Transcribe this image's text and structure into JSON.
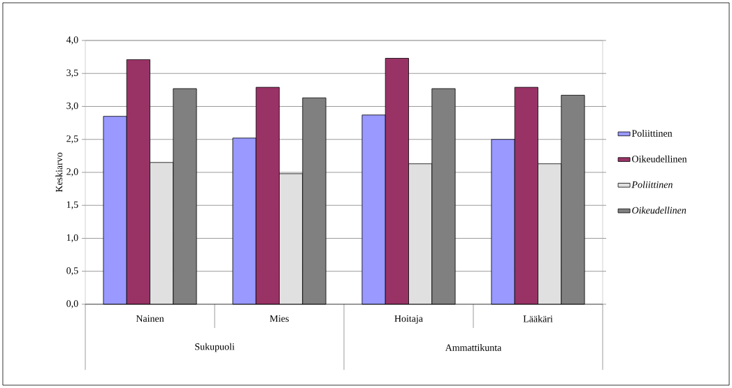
{
  "chart_data": {
    "type": "bar",
    "ylabel": "Keskiarvo",
    "categories": [
      "Nainen",
      "Mies",
      "Hoitaja",
      "Lääkäri"
    ],
    "annotations": [
      "Sukupuoli",
      "Ammattikunta"
    ],
    "series": [
      {
        "name": "Poliittinen",
        "color": "#9999ff",
        "values": [
          2.85,
          2.52,
          2.87,
          2.5
        ]
      },
      {
        "name": "Oikeudellinen",
        "color": "#993366",
        "values": [
          3.71,
          3.29,
          3.73,
          3.29
        ]
      },
      {
        "name": "*Poliittinen*",
        "color": "#e0e0e0",
        "values": [
          2.15,
          1.98,
          2.13,
          2.13
        ]
      },
      {
        "name": "*Oikeudellinen*",
        "color": "#808080",
        "values": [
          3.27,
          3.13,
          3.27,
          3.17
        ]
      }
    ],
    "ylim": [
      0,
      4
    ],
    "yticks": [
      {
        "value": 0,
        "label": "0,0"
      },
      {
        "value": 0.5,
        "label": "0,5"
      },
      {
        "value": 1,
        "label": "1,0"
      },
      {
        "value": 1.5,
        "label": "1,5"
      },
      {
        "value": 2,
        "label": "2,0"
      },
      {
        "value": 2.5,
        "label": "2,5"
      },
      {
        "value": 3,
        "label": "3,0"
      },
      {
        "value": 3.5,
        "label": "3,5"
      },
      {
        "value": 4,
        "label": "4,0"
      }
    ],
    "grid": "y",
    "legend": "right"
  }
}
